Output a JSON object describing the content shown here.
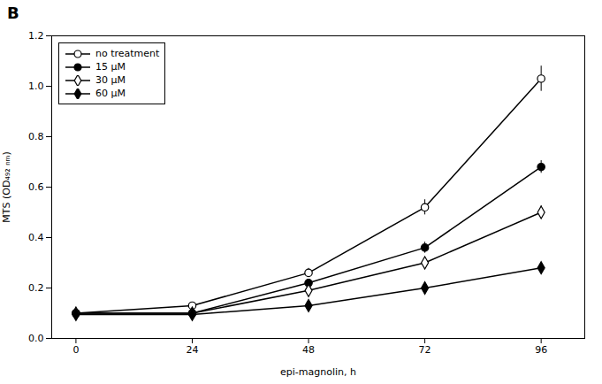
{
  "chart_data": {
    "type": "line",
    "title": "B",
    "xlabel": "epi-magnolin, h",
    "ylabel": "MTS (OD₄₉₂ ₙₘ)",
    "x": [
      0,
      24,
      48,
      72,
      96
    ],
    "color": "black",
    "series": [
      {
        "name": "no treatment",
        "values": [
          0.1,
          0.13,
          0.26,
          0.52,
          1.03
        ],
        "y_err": [
          0.008,
          0.008,
          0.018,
          0.03,
          0.05
        ],
        "marker": "circle-open"
      },
      {
        "name": "15 μM",
        "values": [
          0.1,
          0.1,
          0.22,
          0.36,
          0.68
        ],
        "y_err": [
          0.008,
          0.008,
          0.012,
          0.022,
          0.025
        ],
        "marker": "circle"
      },
      {
        "name": "30 μM",
        "values": [
          0.1,
          0.1,
          0.19,
          0.3,
          0.5
        ],
        "y_err": [
          0.008,
          0.008,
          0.012,
          0.018,
          0.025
        ],
        "marker": "diamond-open"
      },
      {
        "name": "60 μM",
        "values": [
          0.095,
          0.095,
          0.13,
          0.2,
          0.28
        ],
        "y_err": [
          0.005,
          0.005,
          0.008,
          0.012,
          0.018
        ],
        "marker": "diamond"
      }
    ],
    "xlim": [
      -5,
      105
    ],
    "xticks": [
      0,
      24,
      48,
      72,
      96
    ],
    "ylim": [
      0.0,
      1.2
    ],
    "yticks": [
      {
        "value": 0,
        "label": "0.0"
      },
      0.2,
      0.4,
      0.6,
      0.8,
      {
        "value": 1,
        "label": "1.0"
      },
      1.2
    ],
    "legend": "upper left",
    "grid": false
  }
}
